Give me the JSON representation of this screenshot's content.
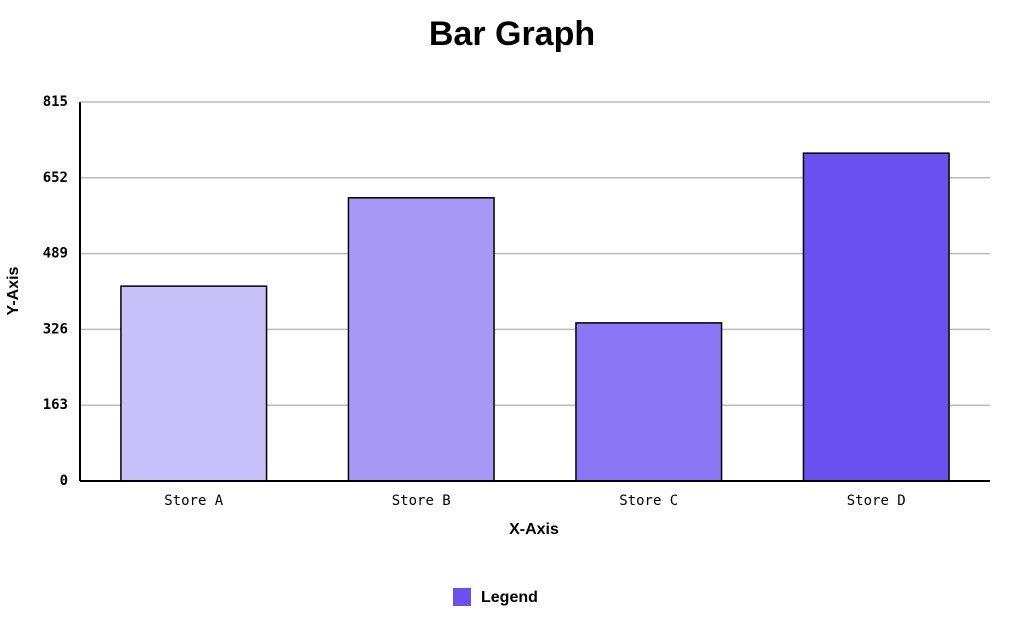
{
  "chart_data": {
    "type": "bar",
    "title": "Bar Graph",
    "x_label": "X-Axis",
    "y_label": "Y-Axis",
    "categories": [
      "Store A",
      "Store B",
      "Store C",
      "Store D"
    ],
    "series": [
      {
        "name": "Legend",
        "color": "#6b50f0",
        "colors": [
          "#c9c1fa",
          "#a899f6",
          "#8b77f5",
          "#6b50f0"
        ],
        "values": [
          419,
          609,
          340,
          705
        ]
      }
    ],
    "ylim": [
      0,
      815
    ],
    "yticks": [
      0,
      163,
      326,
      489,
      652,
      815
    ],
    "grid": true,
    "legend": "bottom"
  }
}
